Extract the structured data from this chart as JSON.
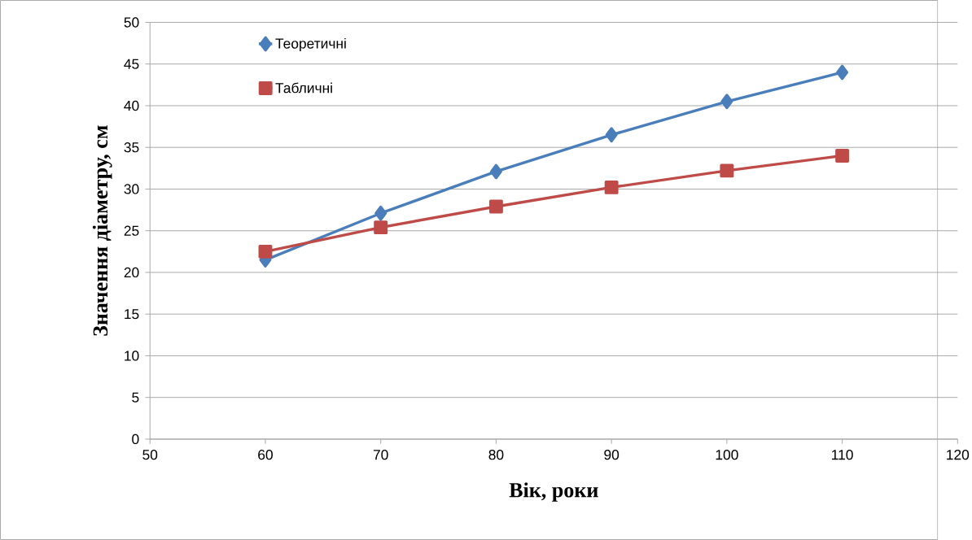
{
  "chart_data": {
    "type": "line",
    "xlabel": "Вік, роки",
    "ylabel": "Значення діаметру, см",
    "x": [
      60,
      70,
      80,
      90,
      100,
      110
    ],
    "series": [
      {
        "name": "Теоретичні",
        "color": "#4a7ebb",
        "marker": "diamond",
        "values": [
          21.5,
          27.1,
          32.1,
          36.5,
          40.5,
          44.0
        ]
      },
      {
        "name": "Табличні",
        "color": "#be4b48",
        "marker": "square",
        "values": [
          22.5,
          25.4,
          27.9,
          30.2,
          32.2,
          34.0
        ]
      }
    ],
    "xlim": [
      50,
      120
    ],
    "ylim": [
      0,
      50
    ],
    "xticks": [
      50,
      60,
      70,
      80,
      90,
      100,
      110,
      120
    ],
    "yticks": [
      0,
      5,
      10,
      15,
      20,
      25,
      30,
      35,
      40,
      45,
      50
    ],
    "grid": "y",
    "legend": "top left",
    "line_style": "solid"
  }
}
